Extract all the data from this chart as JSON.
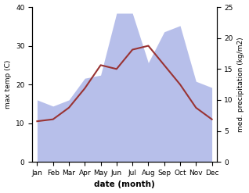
{
  "months": [
    "Jan",
    "Feb",
    "Mar",
    "Apr",
    "May",
    "Jun",
    "Jul",
    "Aug",
    "Sep",
    "Oct",
    "Nov",
    "Dec"
  ],
  "max_temp": [
    10.5,
    11.0,
    14.0,
    19.0,
    25.0,
    24.0,
    29.0,
    30.0,
    25.0,
    20.0,
    14.0,
    11.0
  ],
  "precipitation": [
    10.0,
    9.0,
    10.0,
    13.5,
    14.0,
    24.0,
    24.0,
    16.0,
    21.0,
    22.0,
    13.0,
    12.0
  ],
  "temp_color": "#993333",
  "precip_fill_color": "#b0b8e8",
  "ylabel_left": "max temp (C)",
  "ylabel_right": "med. precipitation (kg/m2)",
  "xlabel": "date (month)",
  "ylim_left": [
    0,
    40
  ],
  "ylim_right": [
    0,
    25
  ],
  "yticks_left": [
    0,
    10,
    20,
    30,
    40
  ],
  "yticks_right": [
    0,
    5,
    10,
    15,
    20,
    25
  ],
  "bg_color": "#ffffff"
}
